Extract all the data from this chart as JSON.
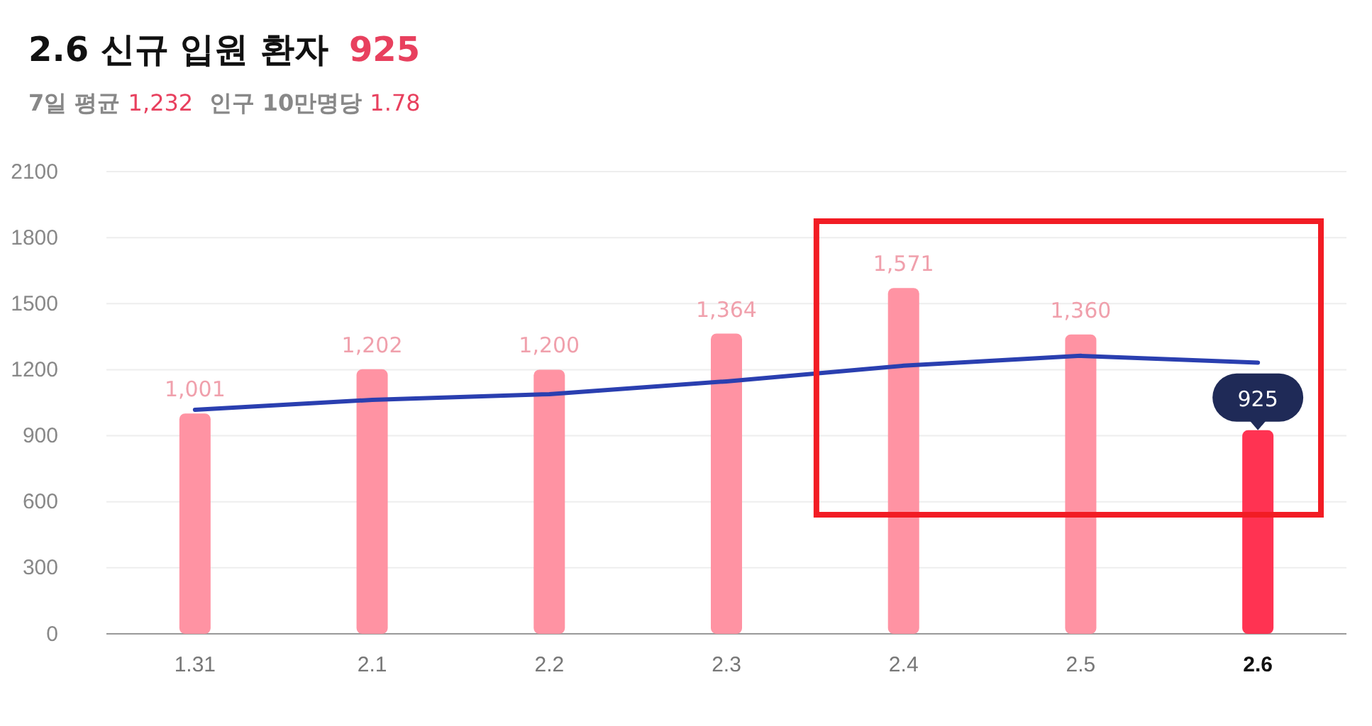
{
  "chart_data": {
    "type": "bar",
    "title": "2.6 신규 입원 환자 925",
    "subtitle": "7일 평균 1,232  인구 10만명당 1.78",
    "categories": [
      "1.31",
      "2.1",
      "2.2",
      "2.3",
      "2.4",
      "2.5",
      "2.6"
    ],
    "series": [
      {
        "colors": [
          "#ff93a3",
          "#ff93a3",
          "#ff93a3",
          "#ff93a3",
          "#ff93a3",
          "#ff93a3",
          "#ff3352"
        ],
        "values": [
          1001,
          1202,
          1200,
          1364,
          1571,
          1360,
          925
        ],
        "value_labels": [
          "1,001",
          "1,202",
          "1,200",
          "1,364",
          "1,571",
          "1,360",
          "925"
        ]
      },
      {
        "type": "line",
        "color": "#2a3fb0",
        "values": [
          1018,
          1063,
          1089,
          1147,
          1218,
          1263,
          1232
        ]
      }
    ],
    "ylim": [
      0,
      2100
    ],
    "yticks": [
      0,
      300,
      600,
      900,
      1200,
      1500,
      1800,
      2100
    ],
    "grid": "y",
    "marker": "none",
    "line_style": "solid"
  }
}
